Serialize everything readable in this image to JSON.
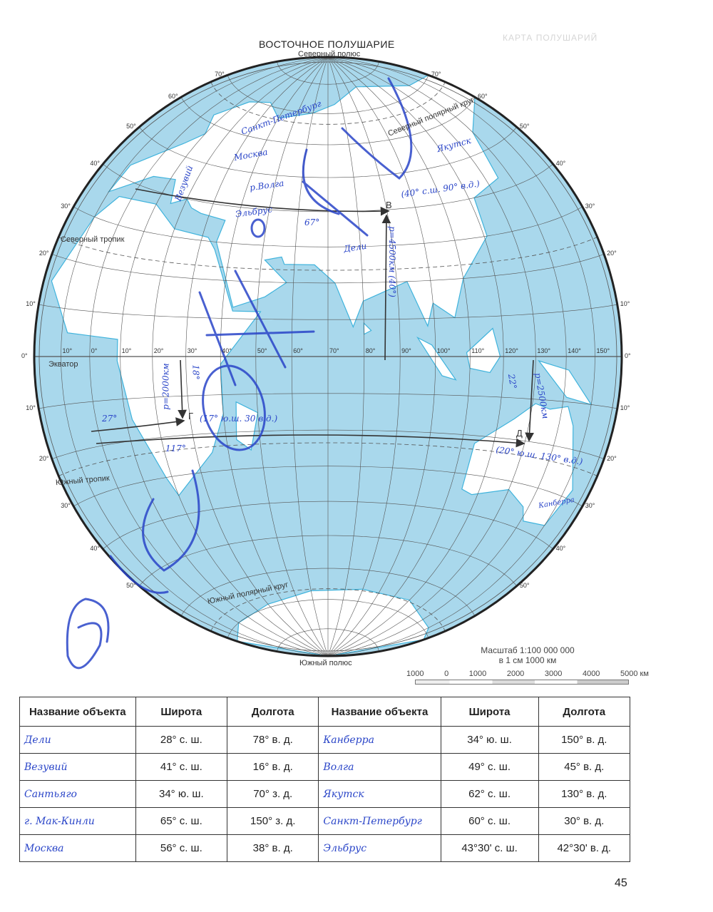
{
  "header": {
    "title": "ВОСТОЧНОЕ ПОЛУШАРИЕ",
    "faint_heading": "КАРТА ПОЛУШАРИЙ"
  },
  "map": {
    "center_longitude": 70,
    "colors": {
      "ocean": "#a9d8ec",
      "land": "#ffffff",
      "coast": "#3fb3dc",
      "grid": "#555555",
      "ink": "#2a45c8"
    },
    "labels": {
      "north_pole": "Северный полюс",
      "south_pole": "Южный полюс",
      "arctic_circle": "Северный полярный круг",
      "antarctic_circle": "Южный полярный круг",
      "tropic_north": "Северный тропик",
      "tropic_south": "Южный тропик",
      "equator": "Экватор"
    },
    "equator_longitudes": [
      "10°",
      "0°",
      "10°",
      "20°",
      "30°",
      "40°",
      "50°",
      "60°",
      "70°",
      "80°",
      "90°",
      "100°",
      "110°",
      "120°",
      "130°",
      "140°",
      "150°"
    ],
    "edge_latitudes_left": [
      "70°",
      "60°",
      "50°",
      "40°",
      "30°",
      "20°",
      "10°",
      "0°",
      "10°",
      "20°",
      "30°",
      "40°",
      "50°"
    ],
    "edge_latitudes_right": [
      "70°",
      "60°",
      "50°",
      "40°",
      "30°",
      "20°",
      "10°",
      "0°",
      "10°",
      "20°",
      "30°",
      "40°",
      "50°"
    ],
    "points": {
      "b": "В",
      "g": "Г",
      "d": "Д"
    },
    "handwritten": {
      "spb": "Санкт-Петербург",
      "moscow": "Москва",
      "vesuvius": "Везувий",
      "volga": "р.Волга",
      "elbrus": "Эльбрус",
      "delhi": "Дели",
      "yakutsk": "Якутск",
      "b_coords": "(40° с.ш. 90° в.д.)",
      "b_lon_diff": "67°",
      "b_distance": "р=4500км (40°)",
      "g_distance": "р=2000км",
      "g_lat_diff": "18°",
      "g_lon_diff": "27°",
      "g_coords": "(17° ю.ш. 30 в.д.)",
      "g_other": "117°",
      "d_distance": "р=2500км",
      "d_lat_diff": "22°",
      "d_coords": "(20° ю.ш. 130° в.д.)",
      "canberra": "Канберра"
    },
    "scale": {
      "title": "Масштаб 1:100 000 000",
      "subtitle": "в 1 см 1000 км",
      "ticks": [
        "1000",
        "0",
        "1000",
        "2000",
        "3000",
        "4000",
        "5000 км"
      ]
    }
  },
  "table": {
    "headers": [
      "Название объекта",
      "Широта",
      "Долгота",
      "Название объекта",
      "Широта",
      "Долгота"
    ],
    "rows": [
      [
        "Дели",
        "28° с. ш.",
        "78° в. д.",
        "Канберра",
        "34° ю. ш.",
        "150° в. д."
      ],
      [
        "Везувий",
        "41° с. ш.",
        "16° в. д.",
        "Волга",
        "49° с. ш.",
        "45° в. д."
      ],
      [
        "Сантьяго",
        "34° ю. ш.",
        "70° з. д.",
        "Якутск",
        "62° с. ш.",
        "130° в. д."
      ],
      [
        "г. Мак-Кинли",
        "65° с. ш.",
        "150° з. д.",
        "Санкт-Петербург",
        "60° с. ш.",
        "30° в. д."
      ],
      [
        "Москва",
        "56° с. ш.",
        "38° в. д.",
        "Эльбрус",
        "43°30' с. ш.",
        "42°30' в. д."
      ]
    ]
  },
  "page_number": "45"
}
